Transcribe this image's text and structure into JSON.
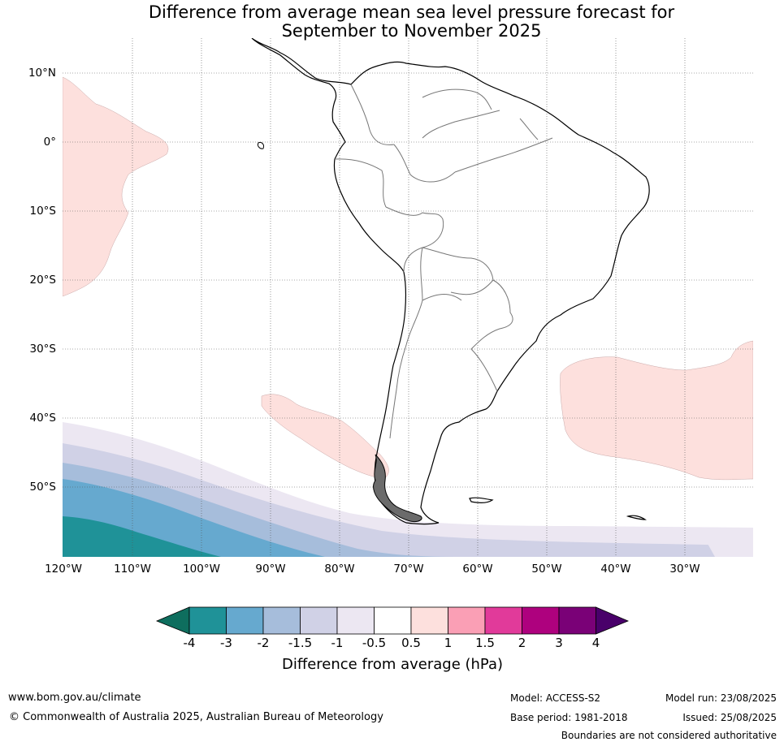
{
  "title_line1": "Difference from average mean sea level pressure forecast for",
  "title_line2": "September to November 2025",
  "lat_ticks": [
    "10°N",
    "0°",
    "10°S",
    "20°S",
    "30°S",
    "40°S",
    "50°S"
  ],
  "lon_ticks": [
    "120°W",
    "110°W",
    "100°W",
    "90°W",
    "80°W",
    "70°W",
    "60°W",
    "50°W",
    "40°W",
    "30°W"
  ],
  "colorbar": {
    "labels": [
      "-4",
      "-3",
      "-2",
      "-1.5",
      "-1",
      "-0.5",
      "0.5",
      "1",
      "1.5",
      "2",
      "3",
      "4"
    ],
    "colors": [
      "#0e6e5e",
      "#1f9298",
      "#66a9cf",
      "#a6bddb",
      "#d0d1e6",
      "#ece7f2",
      "#ffffff",
      "#fde0dd",
      "#fa9fb5",
      "#e13a9a",
      "#ae017e",
      "#7a0177",
      "#49006a"
    ],
    "title": "Difference from average (hPa)"
  },
  "footer": {
    "url": "www.bom.gov.au/climate",
    "copyright": "© Commonwealth of Australia 2025, Australian Bureau of Meteorology",
    "model": "Model: ACCESS-S2",
    "base_period": "Base period: 1981-2018",
    "model_run": "Model run: 23/08/2025",
    "issued": "Issued: 25/08/2025",
    "disclaimer": "Boundaries are not considered authoritative"
  }
}
